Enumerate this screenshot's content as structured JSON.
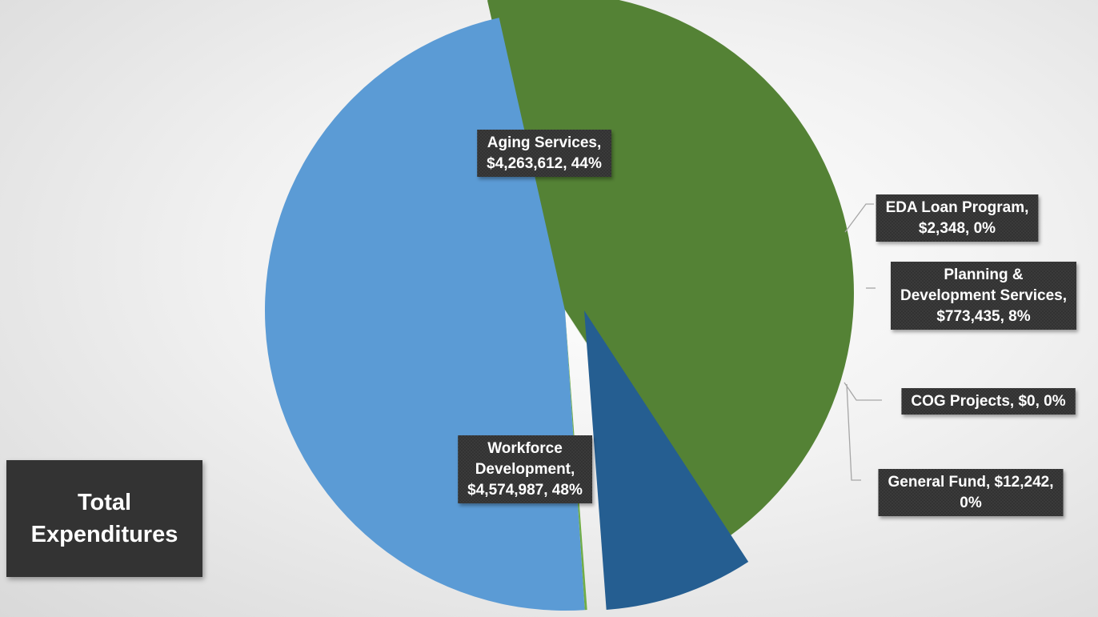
{
  "chart_data": {
    "type": "pie",
    "title": "Total Expenditures",
    "slices": [
      {
        "name": "Aging Services",
        "value": 4263612,
        "label": [
          "Aging Services,",
          "$4,263,612, 44%"
        ],
        "color": "#548235",
        "percent": 44
      },
      {
        "name": "EDA Loan Program",
        "value": 2348,
        "label": [
          "EDA Loan Program,",
          "$2,348, 0%"
        ],
        "color": "#4a7a2c",
        "percent": 0
      },
      {
        "name": "Planning & Development Services",
        "value": 773435,
        "label": [
          "Planning &",
          "Development Services,",
          "$773,435, 8%"
        ],
        "color": "#255e91",
        "percent": 8
      },
      {
        "name": "COG Projects",
        "value": 0,
        "label": [
          "COG Projects, $0, 0%"
        ],
        "color": "#70ad47",
        "percent": 0
      },
      {
        "name": "General Fund",
        "value": 12242,
        "label": [
          "General Fund, $12,242,",
          "0%"
        ],
        "color": "#70ad47",
        "percent": 0
      },
      {
        "name": "Workforce Development",
        "value": 4574987,
        "label": [
          "Workforce",
          "Development,",
          "$4,574,987, 48%"
        ],
        "color": "#5b9bd5",
        "percent": 48
      }
    ]
  }
}
